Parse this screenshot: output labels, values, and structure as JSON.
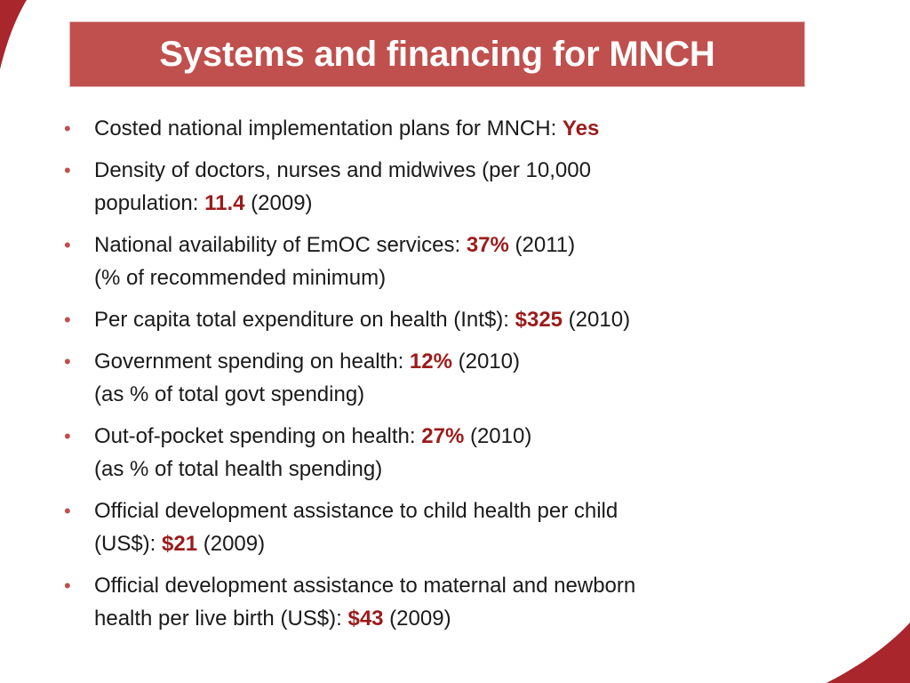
{
  "slide": {
    "title": "Systems and financing for MNCH",
    "colors": {
      "title_bar": "#c0504d",
      "title_text": "#ffffff",
      "body_text": "#1a1a1a",
      "value_text": "#9b1b1b",
      "bullet": "#c0504d",
      "decor_arc": "#a8262c"
    },
    "bullet_icon": "disc-bullet",
    "bullets": [
      {
        "lines": [
          {
            "text": "Costed national implementation plans for MNCH: ",
            "value": "Yes",
            "suffix": ""
          }
        ]
      },
      {
        "lines": [
          {
            "text": "Density of doctors, nurses and midwives (per 10,000",
            "value": "",
            "suffix": ""
          },
          {
            "text": "population:   ",
            "value": "11.4",
            "suffix": " (2009)"
          }
        ]
      },
      {
        "lines": [
          {
            "text": "National availability of EmOC services:  ",
            "value": "37%",
            "suffix": " (2011)"
          },
          {
            "text": "(% of recommended minimum)",
            "value": "",
            "suffix": ""
          }
        ]
      },
      {
        "lines": [
          {
            "text": "Per capita total expenditure on health (Int$):  ",
            "value": "$325",
            "suffix": " (2010)"
          }
        ]
      },
      {
        "lines": [
          {
            "text": "Government spending on health:   ",
            "value": "12%",
            "suffix": " (2010)"
          },
          {
            "text": "(as % of total govt spending)",
            "value": "",
            "suffix": ""
          }
        ]
      },
      {
        "lines": [
          {
            "text": "Out-of-pocket spending on health:   ",
            "value": "27%",
            "suffix": " (2010)"
          },
          {
            "text": "(as % of total health spending)",
            "value": "",
            "suffix": ""
          }
        ]
      },
      {
        "lines": [
          {
            "text": "Official development assistance to child health per child",
            "value": "",
            "suffix": ""
          },
          {
            "text": "(US$):   ",
            "value": "$21",
            "suffix": " (2009)"
          }
        ]
      },
      {
        "lines": [
          {
            "text": "Official development assistance to maternal and newborn",
            "value": "",
            "suffix": ""
          },
          {
            "text": "health per live birth (US$):   ",
            "value": "$43",
            "suffix": " (2009)"
          }
        ]
      }
    ]
  }
}
